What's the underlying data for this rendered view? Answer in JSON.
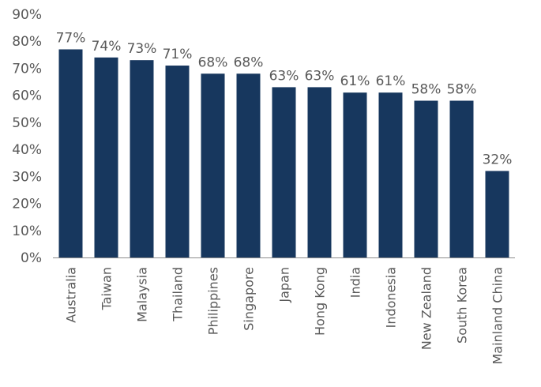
{
  "chart_data": {
    "type": "bar",
    "categories": [
      "Australia",
      "Taiwan",
      "Malaysia",
      "Thailand",
      "Philippines",
      "Singapore",
      "Japan",
      "Hong Kong",
      "India",
      "Indonesia",
      "New Zealand",
      "South Korea",
      "Mainland China"
    ],
    "values": [
      77,
      74,
      73,
      71,
      68,
      68,
      63,
      63,
      61,
      61,
      58,
      58,
      32
    ],
    "value_labels": [
      "77%",
      "74%",
      "73%",
      "71%",
      "68%",
      "68%",
      "63%",
      "63%",
      "61%",
      "61%",
      "58%",
      "58%",
      "32%"
    ],
    "yticks": [
      "0%",
      "10%",
      "20%",
      "30%",
      "40%",
      "50%",
      "60%",
      "70%",
      "80%",
      "90%"
    ],
    "ylim": [
      0,
      90
    ],
    "grid": false,
    "legend": "none",
    "bar_color": "#17375e",
    "axis_color": "#8c8c8c",
    "text_color": "#595959"
  }
}
